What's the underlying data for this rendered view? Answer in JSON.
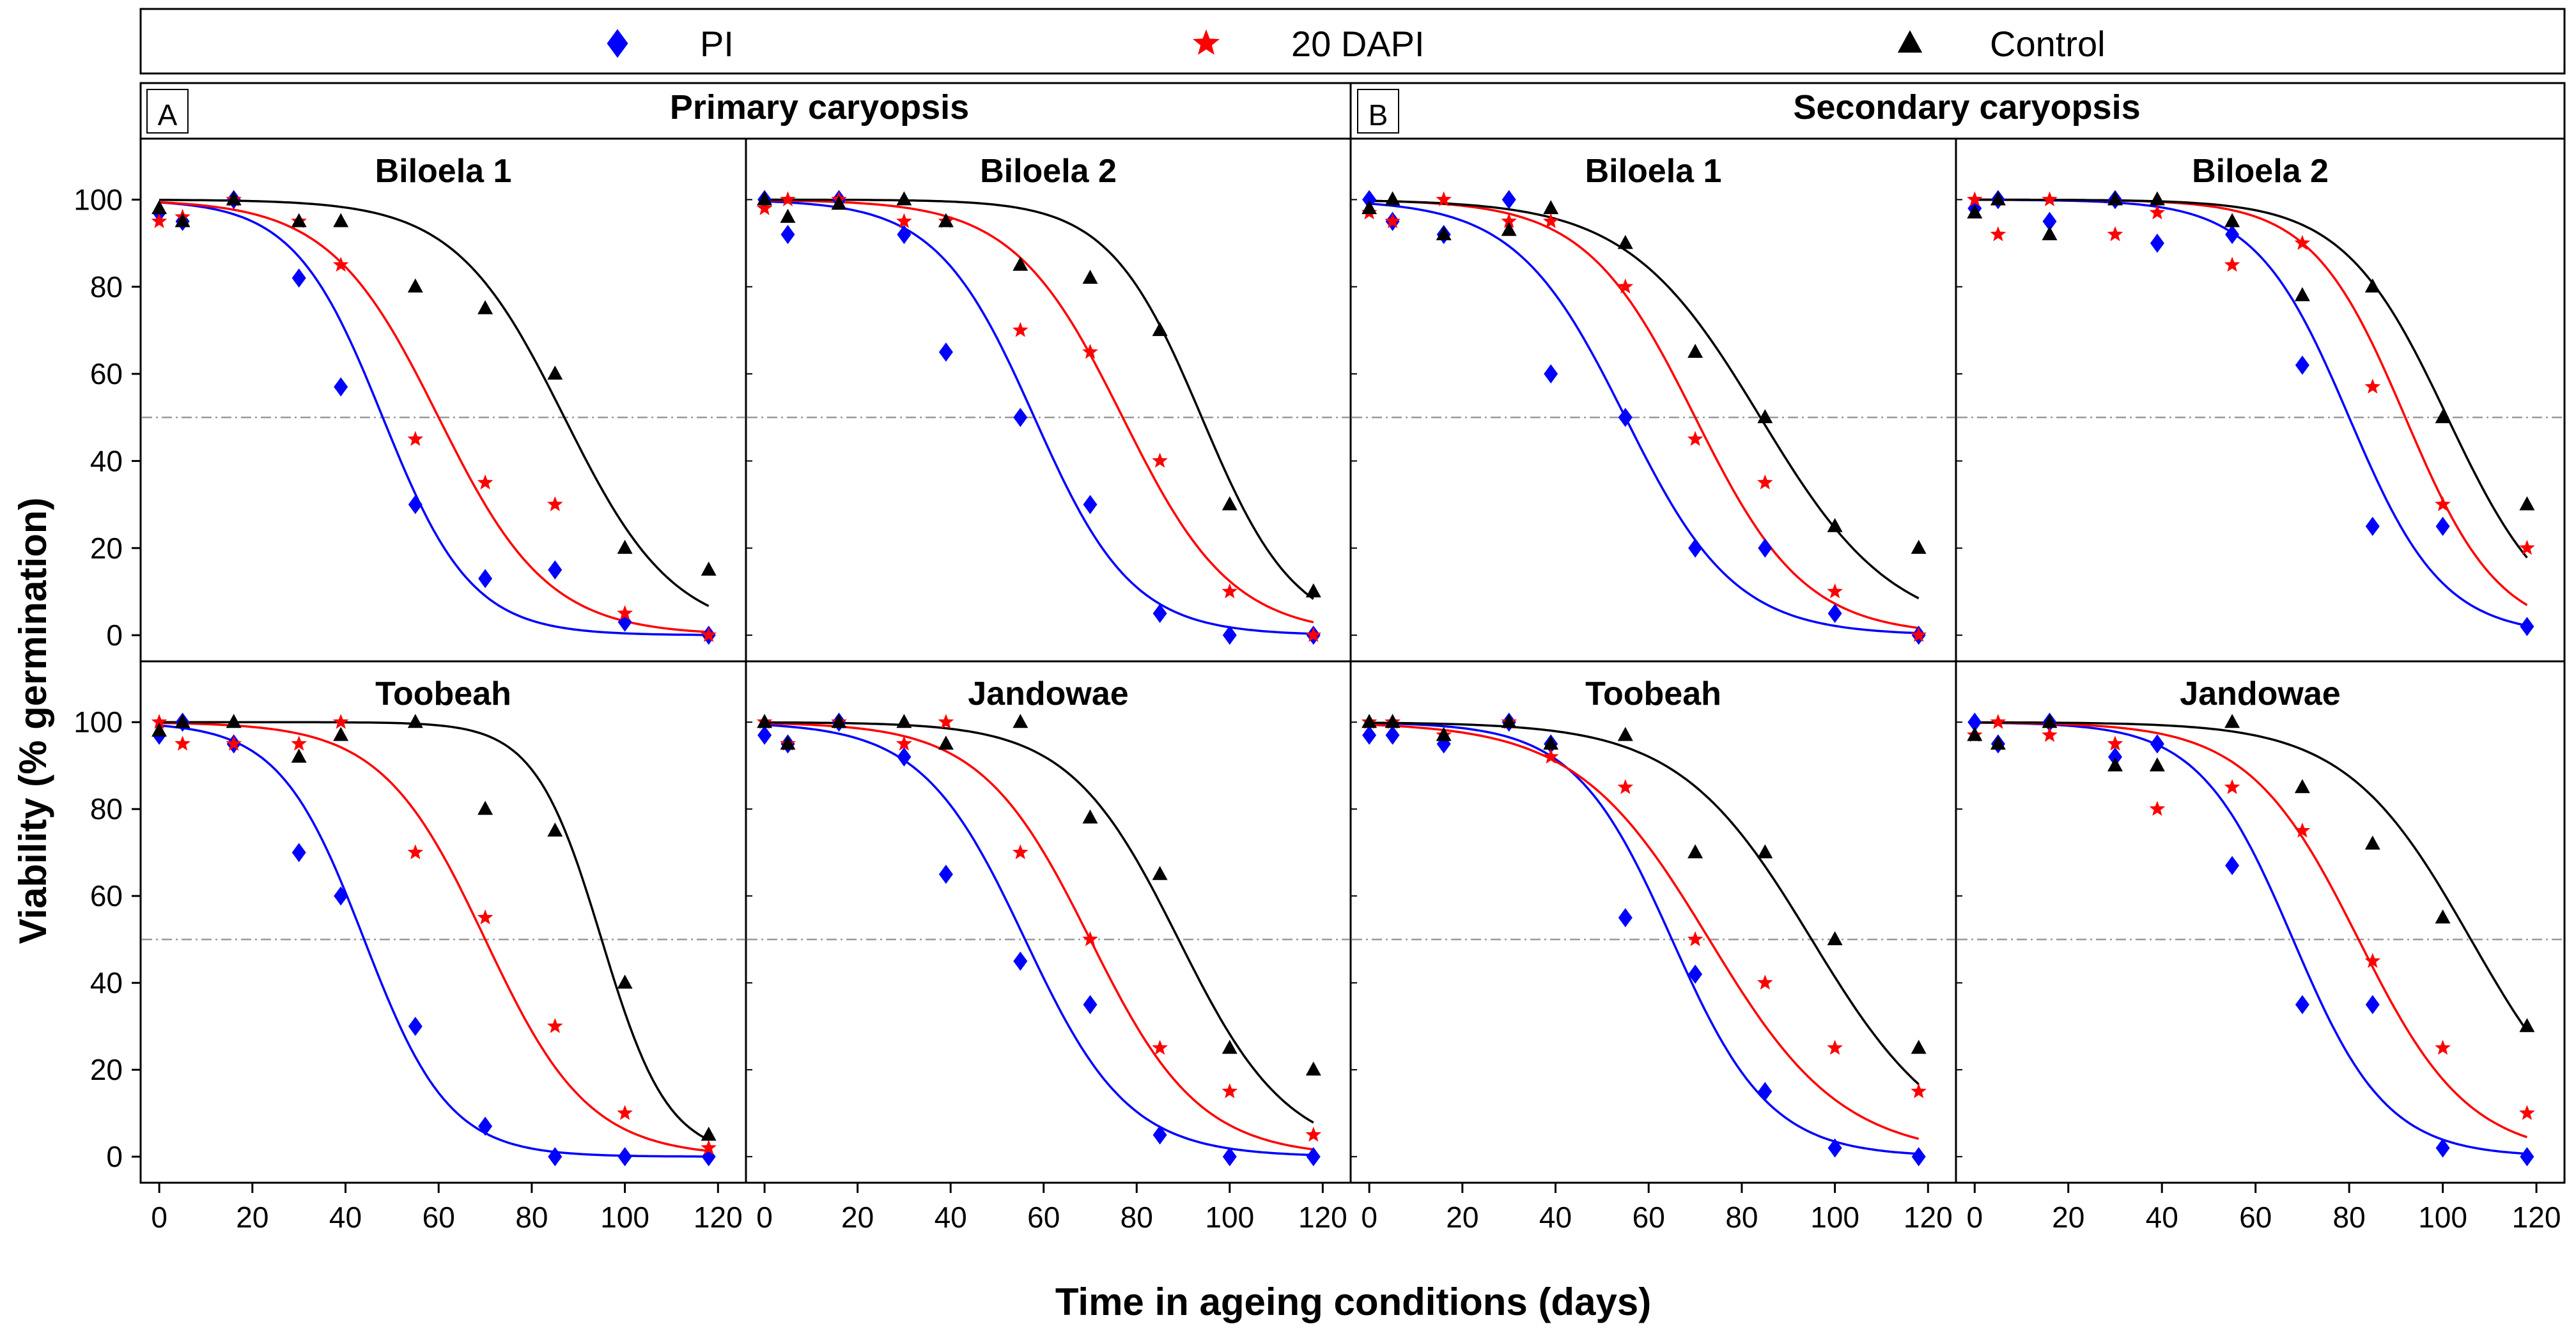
{
  "figure": {
    "xlabel": "Time in ageing conditions (days)",
    "ylabel": "Viability (% germination)",
    "legend": [
      {
        "name": "PI",
        "marker": "diamond",
        "color": "#0000ff"
      },
      {
        "name": "20 DAPI",
        "marker": "star",
        "color": "#ff0000"
      },
      {
        "name": "Control",
        "marker": "triangle",
        "color": "#000000"
      }
    ],
    "sections": [
      {
        "letter": "A",
        "title": "Primary caryopsis"
      },
      {
        "letter": "B",
        "title": "Secondary caryopsis"
      }
    ],
    "x_ticks": [
      0,
      20,
      40,
      60,
      80,
      100,
      120
    ],
    "y_ticks": [
      0,
      20,
      40,
      60,
      80,
      100
    ],
    "xlim": [
      -4,
      126
    ],
    "ylim": [
      -6,
      114
    ],
    "reference_line_y": 50
  },
  "chart_data": [
    {
      "type": "scatter",
      "section": "Primary caryopsis",
      "title": "Biloela 1",
      "x": [
        0,
        5,
        16,
        30,
        39,
        55,
        70,
        85,
        100,
        118
      ],
      "series": [
        {
          "name": "PI",
          "values": [
            97,
            95,
            100,
            82,
            57,
            30,
            13,
            15,
            3,
            0
          ],
          "fit": {
            "x50": 48,
            "slope": 0.105
          }
        },
        {
          "name": "20 DAPI",
          "values": [
            95,
            96,
            100,
            95,
            85,
            45,
            35,
            30,
            5,
            0
          ],
          "fit": {
            "x50": 60,
            "slope": 0.085
          }
        },
        {
          "name": "Control",
          "values": [
            98,
            95,
            100,
            95,
            95,
            80,
            75,
            60,
            20,
            15
          ],
          "fit": {
            "x50": 87,
            "slope": 0.085
          }
        }
      ]
    },
    {
      "type": "scatter",
      "section": "Primary caryopsis",
      "title": "Biloela 2",
      "x": [
        0,
        5,
        16,
        30,
        39,
        55,
        70,
        85,
        100,
        118
      ],
      "series": [
        {
          "name": "PI",
          "values": [
            100,
            92,
            100,
            92,
            65,
            50,
            30,
            5,
            0,
            0
          ],
          "fit": {
            "x50": 58,
            "slope": 0.095
          }
        },
        {
          "name": "20 DAPI",
          "values": [
            98,
            100,
            100,
            95,
            95,
            70,
            65,
            40,
            10,
            0
          ],
          "fit": {
            "x50": 77,
            "slope": 0.085
          }
        },
        {
          "name": "Control",
          "values": [
            100,
            96,
            99,
            100,
            95,
            85,
            82,
            70,
            30,
            10
          ],
          "fit": {
            "x50": 94,
            "slope": 0.1
          }
        }
      ]
    },
    {
      "type": "scatter",
      "section": "Secondary caryopsis",
      "title": "Biloela 1",
      "x": [
        0,
        5,
        16,
        30,
        39,
        55,
        70,
        85,
        100,
        118
      ],
      "series": [
        {
          "name": "PI",
          "values": [
            100,
            95,
            92,
            100,
            60,
            50,
            20,
            20,
            5,
            0
          ],
          "fit": {
            "x50": 55,
            "slope": 0.085
          }
        },
        {
          "name": "20 DAPI",
          "values": [
            97,
            95,
            100,
            95,
            95,
            80,
            45,
            35,
            10,
            0
          ],
          "fit": {
            "x50": 70,
            "slope": 0.085
          }
        },
        {
          "name": "Control",
          "values": [
            98,
            100,
            92,
            93,
            98,
            90,
            65,
            50,
            25,
            20
          ],
          "fit": {
            "x50": 84,
            "slope": 0.07
          }
        }
      ]
    },
    {
      "type": "scatter",
      "section": "Secondary caryopsis",
      "title": "Biloela 2",
      "x": [
        0,
        5,
        16,
        30,
        39,
        55,
        70,
        85,
        100,
        118
      ],
      "series": [
        {
          "name": "PI",
          "values": [
            98,
            100,
            95,
            100,
            90,
            92,
            62,
            25,
            25,
            2
          ],
          "fit": {
            "x50": 80,
            "slope": 0.1
          }
        },
        {
          "name": "20 DAPI",
          "values": [
            100,
            92,
            100,
            92,
            97,
            85,
            90,
            57,
            30,
            20
          ],
          "fit": {
            "x50": 92,
            "slope": 0.1
          }
        },
        {
          "name": "Control",
          "values": [
            97,
            100,
            92,
            100,
            100,
            95,
            78,
            80,
            50,
            30
          ],
          "fit": {
            "x50": 101,
            "slope": 0.09
          }
        }
      ]
    },
    {
      "type": "scatter",
      "section": "Primary caryopsis",
      "title": "Toobeah",
      "x": [
        0,
        5,
        16,
        30,
        39,
        55,
        70,
        85,
        100,
        118
      ],
      "series": [
        {
          "name": "PI",
          "values": [
            97,
            100,
            95,
            70,
            60,
            30,
            7,
            0,
            0,
            0
          ],
          "fit": {
            "x50": 44,
            "slope": 0.11
          }
        },
        {
          "name": "20 DAPI",
          "values": [
            100,
            95,
            95,
            95,
            100,
            70,
            55,
            30,
            10,
            2
          ],
          "fit": {
            "x50": 70,
            "slope": 0.09
          }
        },
        {
          "name": "Control",
          "values": [
            98,
            100,
            100,
            92,
            97,
            100,
            80,
            75,
            40,
            5
          ],
          "fit": {
            "x50": 95,
            "slope": 0.14
          }
        }
      ]
    },
    {
      "type": "scatter",
      "section": "Primary caryopsis",
      "title": "Jandowae",
      "x": [
        0,
        5,
        16,
        30,
        39,
        55,
        70,
        85,
        100,
        118
      ],
      "series": [
        {
          "name": "PI",
          "values": [
            97,
            95,
            100,
            92,
            65,
            45,
            35,
            5,
            0,
            0
          ],
          "fit": {
            "x50": 56,
            "slope": 0.09
          }
        },
        {
          "name": "20 DAPI",
          "values": [
            100,
            95,
            100,
            95,
            100,
            70,
            50,
            25,
            15,
            5
          ],
          "fit": {
            "x50": 70,
            "slope": 0.085
          }
        },
        {
          "name": "Control",
          "values": [
            100,
            95,
            100,
            100,
            95,
            100,
            78,
            65,
            25,
            20
          ],
          "fit": {
            "x50": 89,
            "slope": 0.085
          }
        }
      ]
    },
    {
      "type": "scatter",
      "section": "Secondary caryopsis",
      "title": "Toobeah",
      "x": [
        0,
        5,
        16,
        30,
        39,
        55,
        70,
        85,
        100,
        118
      ],
      "series": [
        {
          "name": "PI",
          "values": [
            97,
            97,
            95,
            100,
            95,
            55,
            42,
            15,
            2,
            0
          ],
          "fit": {
            "x50": 65,
            "slope": 0.095
          }
        },
        {
          "name": "20 DAPI",
          "values": [
            100,
            100,
            97,
            100,
            92,
            85,
            50,
            40,
            25,
            15
          ],
          "fit": {
            "x50": 73,
            "slope": 0.07
          }
        },
        {
          "name": "Control",
          "values": [
            100,
            100,
            97,
            100,
            95,
            97,
            70,
            70,
            50,
            25
          ],
          "fit": {
            "x50": 95,
            "slope": 0.07
          }
        }
      ]
    },
    {
      "type": "scatter",
      "section": "Secondary caryopsis",
      "title": "Jandowae",
      "x": [
        0,
        5,
        16,
        30,
        39,
        55,
        70,
        85,
        100,
        118
      ],
      "series": [
        {
          "name": "PI",
          "values": [
            100,
            95,
            100,
            92,
            95,
            67,
            35,
            35,
            2,
            0
          ],
          "fit": {
            "x50": 68,
            "slope": 0.1
          }
        },
        {
          "name": "20 DAPI",
          "values": [
            97,
            100,
            97,
            95,
            80,
            85,
            75,
            45,
            25,
            10
          ],
          "fit": {
            "x50": 82,
            "slope": 0.085
          }
        },
        {
          "name": "Control",
          "values": [
            97,
            95,
            100,
            90,
            90,
            100,
            85,
            72,
            55,
            30
          ],
          "fit": {
            "x50": 106,
            "slope": 0.075
          }
        }
      ]
    }
  ]
}
